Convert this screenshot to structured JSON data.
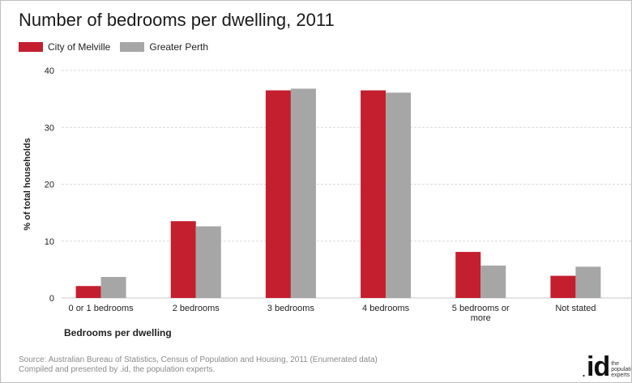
{
  "colors": {
    "melville": "#c41f2e",
    "perth": "#a6a6a6",
    "grid": "#d9d9d9"
  },
  "legend": {
    "melville_label": "City of Melville",
    "perth_label": "Greater Perth"
  },
  "source": {
    "line1": "Source: Australian Bureau of Statistics, Census of Population and Housing, 2011 (Enumerated data)",
    "line2": "Compiled and presented by .id, the population experts."
  },
  "logo": {
    "dot": ".",
    "mark": "id",
    "words_1": "the",
    "words_2": "populati",
    "words_3": "experts"
  },
  "chart_data": {
    "type": "bar",
    "title": "Number of bedrooms per dwelling, 2011",
    "xlabel": "Bedrooms per dwelling",
    "ylabel": "% of total households",
    "ylim": [
      0,
      40
    ],
    "yticks": [
      0,
      10,
      20,
      30,
      40
    ],
    "grid": true,
    "legend_position": "top-left",
    "categories": [
      "0 or 1 bedrooms",
      "2 bedrooms",
      "3 bedrooms",
      "4 bedrooms",
      "5 bedrooms or more",
      "Not stated"
    ],
    "category_lines": [
      [
        "0 or 1 bedrooms"
      ],
      [
        "2 bedrooms"
      ],
      [
        "3 bedrooms"
      ],
      [
        "4 bedrooms"
      ],
      [
        "5 bedrooms or",
        "more"
      ],
      [
        "Not stated"
      ]
    ],
    "series": [
      {
        "name": "City of Melville",
        "values": [
          2.1,
          13.5,
          36.5,
          36.5,
          8.1,
          3.9
        ]
      },
      {
        "name": "Greater Perth",
        "values": [
          3.7,
          12.6,
          36.8,
          36.1,
          5.7,
          5.5
        ]
      }
    ]
  }
}
